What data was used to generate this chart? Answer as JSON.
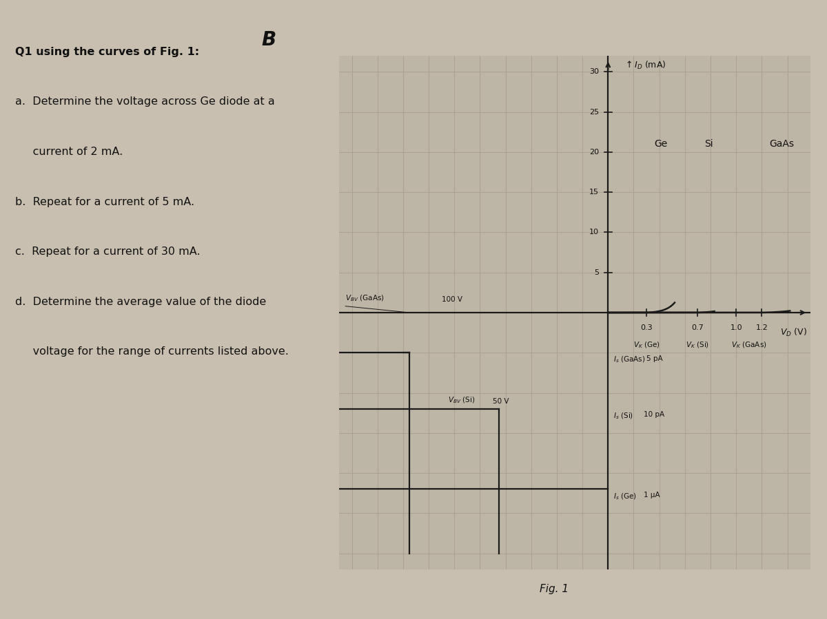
{
  "bg_color": "#c8bfb0",
  "chart_bg": "#bdb5a5",
  "grid_color": "#a89e90",
  "axis_color": "#1a1a1a",
  "curve_color": "#1a1a1a",
  "title": "B",
  "fig_label": "Fig. 1",
  "question_lines": [
    [
      "Q1 using the curves of Fig. 1:",
      true
    ],
    [
      "a.  Determine the voltage across Ge diode at a",
      false
    ],
    [
      "     current of 2 mA.",
      false
    ],
    [
      "b.  Repeat for a current of 5 mA.",
      false
    ],
    [
      "c.  Repeat for a current of 30 mA.",
      false
    ],
    [
      "d.  Determine the average value of the diode",
      false
    ],
    [
      "     voltage for the range of currents listed above.",
      false
    ]
  ],
  "yticks": [
    5,
    10,
    15,
    20,
    25,
    30
  ],
  "xticks_fwd": [
    0.3,
    0.7,
    1.0,
    1.2
  ],
  "ge_knee": 0.3,
  "si_knee": 0.7,
  "gaas_knee": 1.2,
  "y_gaas_rv": -5.0,
  "y_si_rv": -12.0,
  "y_ge_rv": -22.0,
  "x_gaas_bv": -1.55,
  "x_si_bv": -0.85,
  "xlim_left": -2.1,
  "xlim_right": 1.58,
  "ylim_bottom": -32.0,
  "ylim_top": 32.0
}
